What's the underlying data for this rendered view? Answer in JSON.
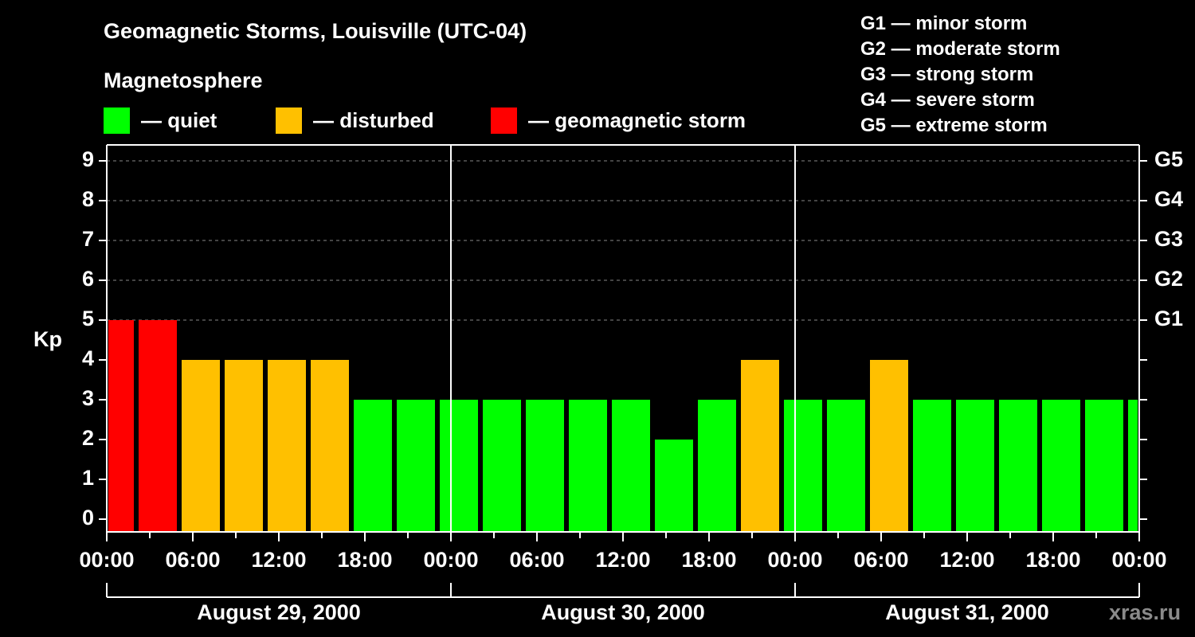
{
  "header": {
    "title": "Geomagnetic Storms, Louisville (UTC-04)",
    "subtitle": "Magnetosphere"
  },
  "legend": [
    {
      "label": "— quiet",
      "color": "#00ff00"
    },
    {
      "label": "— disturbed",
      "color": "#ffc000"
    },
    {
      "label": "— geomagnetic storm",
      "color": "#ff0000"
    }
  ],
  "storm_scale": [
    "G1 — minor storm",
    "G2 — moderate storm",
    "G3 — strong storm",
    "G4 — severe storm",
    "G5 — extreme storm"
  ],
  "credit": "xras.ru",
  "chart_data": {
    "type": "bar",
    "title": "Geomagnetic Storms, Louisville (UTC-04)",
    "subtitle": "Magnetosphere",
    "xlabel": "",
    "ylabel": "Kp",
    "ylim": [
      0,
      9
    ],
    "yticks": [
      0,
      1,
      2,
      3,
      4,
      5,
      6,
      7,
      8,
      9
    ],
    "right_axis_labels": {
      "5": "G1",
      "6": "G2",
      "7": "G3",
      "8": "G4",
      "9": "G5"
    },
    "grid": "dashed horizontal lines at Kp 5-9",
    "xtick_labels": [
      "00:00",
      "06:00",
      "12:00",
      "18:00",
      "00:00",
      "06:00",
      "12:00",
      "18:00",
      "00:00",
      "06:00",
      "12:00",
      "18:00",
      "00:00"
    ],
    "dates": [
      "August 29, 2000",
      "August 30, 2000",
      "August 31, 2000"
    ],
    "categories": [
      "Aug 29 00:00",
      "Aug 29 03:00",
      "Aug 29 06:00",
      "Aug 29 09:00",
      "Aug 29 12:00",
      "Aug 29 15:00",
      "Aug 29 18:00",
      "Aug 29 21:00",
      "Aug 30 00:00",
      "Aug 30 03:00",
      "Aug 30 06:00",
      "Aug 30 09:00",
      "Aug 30 12:00",
      "Aug 30 15:00",
      "Aug 30 18:00",
      "Aug 30 21:00",
      "Aug 31 00:00",
      "Aug 31 03:00",
      "Aug 31 06:00",
      "Aug 31 09:00",
      "Aug 31 12:00",
      "Aug 31 15:00",
      "Aug 31 18:00",
      "Aug 31 21:00",
      "Sep 01 00:00"
    ],
    "values": [
      5,
      5,
      4,
      4,
      4,
      4,
      3,
      3,
      3,
      3,
      3,
      3,
      3,
      2,
      3,
      4,
      3,
      3,
      4,
      3,
      3,
      3,
      3,
      3,
      3
    ],
    "status": [
      "storm",
      "storm",
      "disturbed",
      "disturbed",
      "disturbed",
      "disturbed",
      "quiet",
      "quiet",
      "quiet",
      "quiet",
      "quiet",
      "quiet",
      "quiet",
      "quiet",
      "quiet",
      "disturbed",
      "quiet",
      "quiet",
      "disturbed",
      "quiet",
      "quiet",
      "quiet",
      "quiet",
      "quiet",
      "quiet"
    ],
    "colors": {
      "quiet": "#00ff00",
      "disturbed": "#ffc000",
      "storm": "#ff0000"
    },
    "legend_position": "top"
  }
}
